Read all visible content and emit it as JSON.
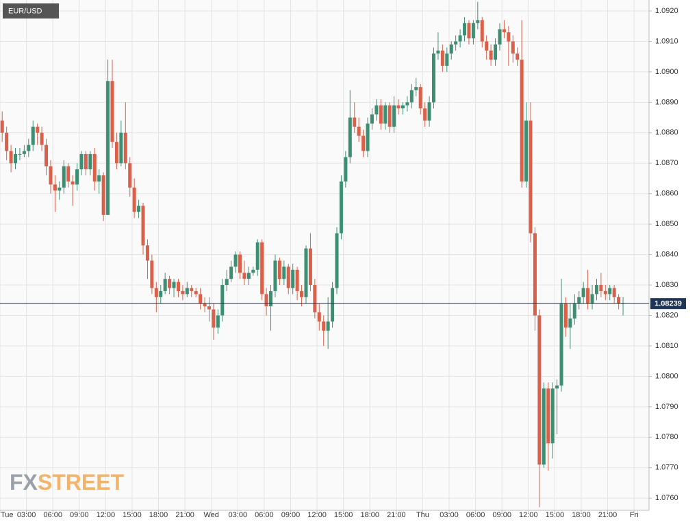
{
  "chart_data": {
    "type": "candlestick",
    "title": "EUR/USD",
    "watermark": [
      "FX",
      "STREET"
    ],
    "current_price": {
      "value": 1.08239,
      "label": "1.08239"
    },
    "up_color": "#3d8f73",
    "down_color": "#d9604a",
    "grid": true,
    "xlim": [
      0,
      73.7
    ],
    "ylim": [
      1.0756,
      1.09236
    ],
    "xticks": [
      {
        "value": 0,
        "label": "Tue"
      },
      {
        "value": 3,
        "label": "03:00"
      },
      {
        "value": 6,
        "label": "06:00"
      },
      {
        "value": 9,
        "label": "09:00"
      },
      {
        "value": 12,
        "label": "12:00"
      },
      {
        "value": 15,
        "label": "15:00"
      },
      {
        "value": 18,
        "label": "18:00"
      },
      {
        "value": 21,
        "label": "21:00"
      },
      {
        "value": 24,
        "label": "Wed"
      },
      {
        "value": 27,
        "label": "03:00"
      },
      {
        "value": 30,
        "label": "06:00"
      },
      {
        "value": 33,
        "label": "09:00"
      },
      {
        "value": 36,
        "label": "12:00"
      },
      {
        "value": 39,
        "label": "15:00"
      },
      {
        "value": 42,
        "label": "18:00"
      },
      {
        "value": 45,
        "label": "21:00"
      },
      {
        "value": 48,
        "label": "Thu"
      },
      {
        "value": 51,
        "label": "03:00"
      },
      {
        "value": 54,
        "label": "06:00"
      },
      {
        "value": 57,
        "label": "09:00"
      },
      {
        "value": 60,
        "label": "12:00"
      },
      {
        "value": 63,
        "label": "15:00"
      },
      {
        "value": 66,
        "label": "18:00"
      },
      {
        "value": 69,
        "label": "21:00"
      },
      {
        "value": 72,
        "label": "Fri"
      }
    ],
    "yticks": [
      {
        "value": 1.076,
        "label": "1.0760"
      },
      {
        "value": 1.077,
        "label": "1.0770"
      },
      {
        "value": 1.078,
        "label": "1.0780"
      },
      {
        "value": 1.079,
        "label": "1.0790"
      },
      {
        "value": 1.08,
        "label": "1.0800"
      },
      {
        "value": 1.081,
        "label": "1.0810"
      },
      {
        "value": 1.082,
        "label": "1.0820"
      },
      {
        "value": 1.083,
        "label": "1.0830"
      },
      {
        "value": 1.084,
        "label": "1.0840"
      },
      {
        "value": 1.085,
        "label": "1.0850"
      },
      {
        "value": 1.086,
        "label": "1.0860"
      },
      {
        "value": 1.087,
        "label": "1.0870"
      },
      {
        "value": 1.088,
        "label": "1.0880"
      },
      {
        "value": 1.089,
        "label": "1.0890"
      },
      {
        "value": 1.09,
        "label": "1.0900"
      },
      {
        "value": 1.091,
        "label": "1.0910"
      },
      {
        "value": 1.092,
        "label": "1.0920"
      }
    ],
    "x": [
      0,
      0.5,
      1,
      1.5,
      2,
      2.5,
      3,
      3.5,
      4,
      4.5,
      5,
      5.5,
      6,
      6.5,
      7,
      7.5,
      8,
      8.5,
      9,
      9.5,
      10,
      10.5,
      11,
      11.5,
      12,
      12.5,
      13,
      13.5,
      14,
      14.5,
      15,
      15.5,
      16,
      16.5,
      17,
      17.5,
      18,
      18.5,
      19,
      19.5,
      20,
      20.5,
      21,
      21.5,
      22,
      22.5,
      23,
      23.5,
      24,
      24.5,
      25,
      25.5,
      26,
      26.5,
      27,
      27.5,
      28,
      28.5,
      29,
      29.5,
      30,
      30.5,
      31,
      31.5,
      32,
      32.5,
      33,
      33.5,
      34,
      34.5,
      35,
      35.5,
      36,
      36.5,
      37,
      37.5,
      38,
      38.5,
      39,
      39.5,
      40,
      40.5,
      41,
      41.5,
      42,
      42.5,
      43,
      43.5,
      44,
      44.5,
      45,
      45.5,
      46,
      46.5,
      47,
      47.5,
      48,
      48.5,
      49,
      49.5,
      50,
      50.5,
      51,
      51.5,
      52,
      52.5,
      53,
      53.5,
      54,
      54.5,
      55,
      55.5,
      56,
      56.5,
      57,
      57.5,
      58,
      58.5,
      59,
      59.5,
      60,
      60.5,
      61,
      61.5,
      62,
      62.5,
      63,
      63.5,
      64,
      64.5,
      65,
      65.5,
      66,
      66.5,
      67,
      67.5,
      68,
      68.5,
      69,
      69.5,
      70,
      70.5
    ],
    "open": [
      1.0884,
      1.088,
      1.0874,
      1.087,
      1.0873,
      1.0873,
      1.0874,
      1.0876,
      1.0882,
      1.088,
      1.0876,
      1.0869,
      1.0863,
      1.0861,
      1.0862,
      1.0869,
      1.0864,
      1.0863,
      1.0868,
      1.0873,
      1.0868,
      1.0873,
      1.0864,
      1.0866,
      1.0853,
      1.0897,
      1.0877,
      1.087,
      1.088,
      1.087,
      1.0862,
      1.0854,
      1.0856,
      1.0843,
      1.0838,
      1.0829,
      1.0826,
      1.0828,
      1.0832,
      1.0829,
      1.0831,
      1.0828,
      1.0827,
      1.0829,
      1.0828,
      1.0827,
      1.0824,
      1.0823,
      1.0822,
      1.0816,
      1.082,
      1.083,
      1.0832,
      1.0836,
      1.084,
      1.0834,
      1.0832,
      1.0834,
      1.0835,
      1.0844,
      1.0827,
      1.0823,
      1.0828,
      1.0838,
      1.0832,
      1.0836,
      1.0829,
      1.0835,
      1.0828,
      1.0826,
      1.0842,
      1.083,
      1.0821,
      1.0818,
      1.0815,
      1.0818,
      1.0829,
      1.0847,
      1.0864,
      1.0872,
      1.0885,
      1.0882,
      1.0879,
      1.0874,
      1.0883,
      1.0886,
      1.0889,
      1.0883,
      1.0889,
      1.0882,
      1.0889,
      1.0888,
      1.0889,
      1.089,
      1.0894,
      1.0895,
      1.0888,
      1.0884,
      1.089,
      1.0906,
      1.0907,
      1.0902,
      1.0906,
      1.0909,
      1.091,
      1.0912,
      1.0916,
      1.0911,
      1.0916,
      1.0917,
      1.091,
      1.0907,
      1.0904,
      1.0909,
      1.0914,
      1.0913,
      1.091,
      1.0906,
      1.0904,
      1.0864,
      1.0884,
      1.0847,
      1.082,
      1.0771,
      1.0796,
      1.0778,
      1.0796,
      1.0797,
      1.0824,
      1.0816,
      1.0819,
      1.0824,
      1.0826,
      1.0829,
      1.0824,
      1.0827,
      1.083,
      1.0828,
      1.0827,
      1.0829,
      1.0826,
      1.0824
    ],
    "high": [
      1.0887,
      1.0882,
      1.0876,
      1.0875,
      1.0875,
      1.0876,
      1.0878,
      1.0884,
      1.0883,
      1.0882,
      1.0878,
      1.0871,
      1.0866,
      1.0864,
      1.0871,
      1.087,
      1.0866,
      1.087,
      1.0874,
      1.0874,
      1.0874,
      1.0875,
      1.0868,
      1.0867,
      1.0904,
      1.0904,
      1.088,
      1.0884,
      1.089,
      1.0872,
      1.0865,
      1.0858,
      1.0857,
      1.0845,
      1.084,
      1.0831,
      1.083,
      1.0834,
      1.0833,
      1.0832,
      1.0832,
      1.083,
      1.0831,
      1.083,
      1.0829,
      1.0829,
      1.0826,
      1.0826,
      1.0824,
      1.0822,
      1.0832,
      1.0835,
      1.0838,
      1.0841,
      1.0841,
      1.0838,
      1.0836,
      1.0836,
      1.0845,
      1.0845,
      1.0829,
      1.083,
      1.084,
      1.0839,
      1.0838,
      1.0837,
      1.0837,
      1.0836,
      1.083,
      1.0843,
      1.0847,
      1.0832,
      1.0824,
      1.082,
      1.0826,
      1.0831,
      1.0849,
      1.0866,
      1.0874,
      1.0894,
      1.089,
      1.0885,
      1.0881,
      1.0885,
      1.0888,
      1.0891,
      1.0891,
      1.089,
      1.089,
      1.0892,
      1.0891,
      1.089,
      1.0892,
      1.0896,
      1.0898,
      1.0896,
      1.089,
      1.0892,
      1.0908,
      1.0913,
      1.0909,
      1.0908,
      1.091,
      1.0912,
      1.0914,
      1.0918,
      1.0917,
      1.0917,
      1.0923,
      1.0918,
      1.0912,
      1.0909,
      1.0911,
      1.0916,
      1.0917,
      1.0915,
      1.0912,
      1.0908,
      1.0917,
      1.089,
      1.089,
      1.0849,
      1.0822,
      1.0798,
      1.0798,
      1.0798,
      1.0799,
      1.0832,
      1.0826,
      1.0824,
      1.0827,
      1.0828,
      1.0831,
      1.0835,
      1.083,
      1.0832,
      1.0834,
      1.083,
      1.083,
      1.083,
      1.0827,
      1.0826
    ],
    "low": [
      1.0877,
      1.0871,
      1.0867,
      1.0868,
      1.0871,
      1.0872,
      1.0872,
      1.0874,
      1.0876,
      1.0874,
      1.0866,
      1.086,
      1.0854,
      1.0858,
      1.086,
      1.0862,
      1.0856,
      1.0861,
      1.0866,
      1.0866,
      1.0866,
      1.0861,
      1.086,
      1.0851,
      1.0853,
      1.0875,
      1.0868,
      1.0869,
      1.0868,
      1.0859,
      1.0852,
      1.0852,
      1.084,
      1.0832,
      1.0827,
      1.0821,
      1.0824,
      1.0827,
      1.0827,
      1.0826,
      1.0826,
      1.0825,
      1.0826,
      1.0826,
      1.0826,
      1.0822,
      1.0821,
      1.0818,
      1.0812,
      1.0814,
      1.0818,
      1.0828,
      1.0831,
      1.0834,
      1.0832,
      1.083,
      1.083,
      1.0833,
      1.0833,
      1.0825,
      1.082,
      1.0815,
      1.0826,
      1.083,
      1.083,
      1.0827,
      1.0827,
      1.0825,
      1.0823,
      1.0824,
      1.0828,
      1.0819,
      1.0815,
      1.081,
      1.0809,
      1.0816,
      1.0827,
      1.0845,
      1.0862,
      1.087,
      1.088,
      1.0877,
      1.0872,
      1.0872,
      1.0881,
      1.0884,
      1.0881,
      1.0881,
      1.088,
      1.088,
      1.0886,
      1.0886,
      1.0887,
      1.0888,
      1.0892,
      1.0886,
      1.0882,
      1.0882,
      1.0888,
      1.0904,
      1.09,
      1.09,
      1.0904,
      1.0907,
      1.0908,
      1.091,
      1.0909,
      1.0909,
      1.0914,
      1.0908,
      1.0904,
      1.0902,
      1.0902,
      1.0907,
      1.0911,
      1.0902,
      1.0903,
      1.0902,
      1.0862,
      1.0862,
      1.0844,
      1.0815,
      1.0757,
      1.077,
      1.0769,
      1.0773,
      1.0781,
      1.0795,
      1.0813,
      1.0809,
      1.0817,
      1.0822,
      1.0824,
      1.0822,
      1.0822,
      1.0825,
      1.0826,
      1.0825,
      1.0825,
      1.0824,
      1.0822,
      1.082
    ],
    "close": [
      1.088,
      1.0874,
      1.087,
      1.0873,
      1.0873,
      1.0874,
      1.0876,
      1.0882,
      1.088,
      1.0876,
      1.0869,
      1.0863,
      1.0861,
      1.0862,
      1.0869,
      1.0864,
      1.0863,
      1.0868,
      1.0873,
      1.0868,
      1.0873,
      1.0864,
      1.0866,
      1.0853,
      1.0897,
      1.0877,
      1.087,
      1.088,
      1.087,
      1.0862,
      1.0854,
      1.0856,
      1.0843,
      1.0838,
      1.0829,
      1.0826,
      1.0828,
      1.0832,
      1.0829,
      1.0831,
      1.0828,
      1.0827,
      1.0829,
      1.0828,
      1.0827,
      1.0824,
      1.0823,
      1.0822,
      1.0816,
      1.082,
      1.083,
      1.0832,
      1.0836,
      1.084,
      1.0834,
      1.0832,
      1.0834,
      1.0835,
      1.0844,
      1.0827,
      1.0823,
      1.0828,
      1.0838,
      1.0832,
      1.0836,
      1.0829,
      1.0835,
      1.0828,
      1.0826,
      1.0842,
      1.083,
      1.0821,
      1.0818,
      1.0815,
      1.0818,
      1.0829,
      1.0847,
      1.0864,
      1.0872,
      1.0885,
      1.0882,
      1.0879,
      1.0874,
      1.0883,
      1.0886,
      1.0889,
      1.0883,
      1.0889,
      1.0882,
      1.0889,
      1.0888,
      1.0889,
      1.089,
      1.0894,
      1.0895,
      1.0888,
      1.0884,
      1.089,
      1.0906,
      1.0907,
      1.0902,
      1.0906,
      1.0909,
      1.091,
      1.0912,
      1.0916,
      1.0911,
      1.0916,
      1.0917,
      1.091,
      1.0907,
      1.0904,
      1.0909,
      1.0914,
      1.0913,
      1.091,
      1.0906,
      1.0904,
      1.0864,
      1.0884,
      1.0847,
      1.082,
      1.0771,
      1.0796,
      1.0778,
      1.0796,
      1.0797,
      1.0824,
      1.0816,
      1.0819,
      1.0824,
      1.0826,
      1.0829,
      1.0824,
      1.0827,
      1.083,
      1.0828,
      1.0827,
      1.0829,
      1.0826,
      1.0824,
      1.0824
    ]
  }
}
